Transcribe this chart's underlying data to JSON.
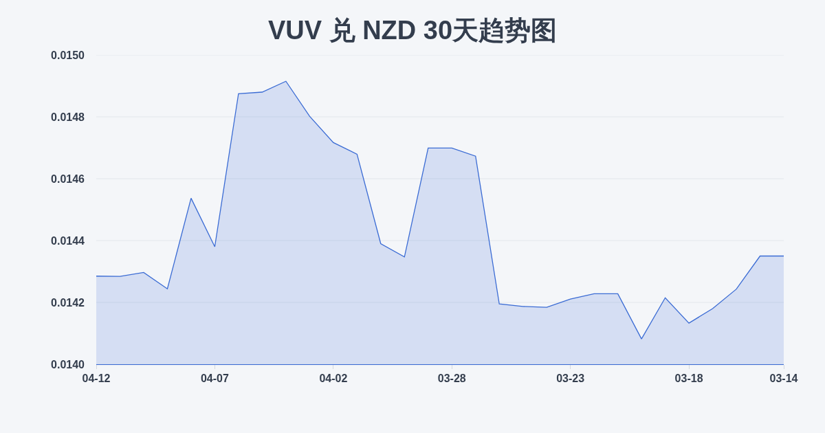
{
  "chart_data": {
    "type": "area",
    "title": "VUV 兑 NZD 30天趋势图",
    "categories": [
      "04-12",
      null,
      null,
      null,
      null,
      "04-07",
      null,
      null,
      null,
      null,
      "04-02",
      null,
      null,
      null,
      null,
      "03-28",
      null,
      null,
      null,
      null,
      "03-23",
      null,
      null,
      null,
      null,
      "03-18",
      null,
      null,
      null,
      "03-14"
    ],
    "series": [
      {
        "color": "#3a6bd4",
        "values": [
          0.014285,
          0.014284,
          0.014297,
          0.014244,
          0.014537,
          0.01438,
          0.014875,
          0.01488,
          0.014915,
          0.014802,
          0.014717,
          0.014679,
          0.01439,
          0.014347,
          0.014699,
          0.014699,
          0.014673,
          0.014195,
          0.014187,
          0.014184,
          0.014211,
          0.014228,
          0.014228,
          0.014082,
          0.014215,
          0.014133,
          0.01418,
          0.014243,
          0.01435,
          0.01435
        ]
      }
    ],
    "ylim": [
      0.014,
      0.015
    ],
    "yticks": [
      {
        "value": 0.014,
        "label": "0.0140"
      },
      {
        "value": 0.0142,
        "label": "0.0142"
      },
      {
        "value": 0.0144,
        "label": "0.0144"
      },
      {
        "value": 0.0146,
        "label": "0.0146"
      },
      {
        "value": 0.0148,
        "label": "0.0148"
      },
      {
        "value": 0.015,
        "label": "0.0150"
      }
    ],
    "grid": "y",
    "marker": "none",
    "line_style": "solid"
  }
}
